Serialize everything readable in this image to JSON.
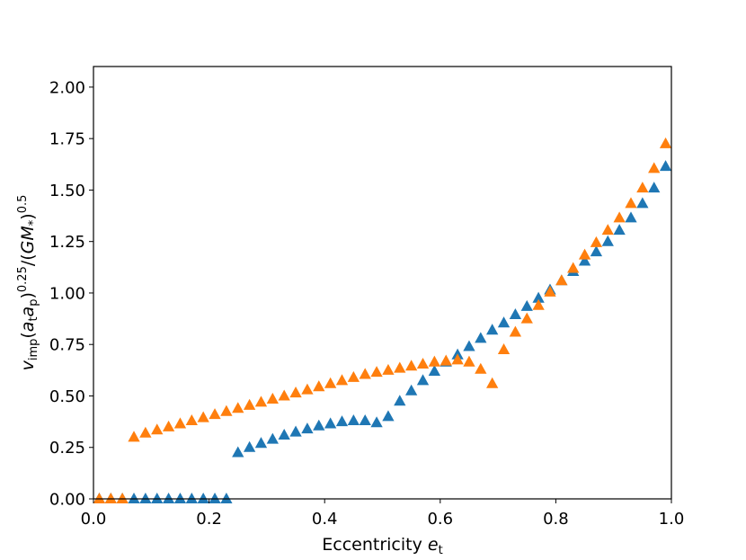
{
  "chart_data": {
    "type": "scatter",
    "marker": "triangle-up",
    "title": "",
    "xlabel": {
      "main": "Eccentricity ",
      "var": "e",
      "sub": "t"
    },
    "ylabel": {
      "v": "v",
      "v_sub": "imp",
      "open": "(",
      "a1": "a",
      "a1_sub": "t",
      "a2": "a",
      "a2_sub": "p",
      "close": ")",
      "exp1": "0.25",
      "slash": "/(",
      "gm": "GM",
      "gm_sub": "*",
      "close2": ")",
      "exp2": "0.5"
    },
    "xlim": [
      0,
      1
    ],
    "ylim": [
      0,
      2.1
    ],
    "xticks": [
      "0.0",
      "0.2",
      "0.4",
      "0.6",
      "0.8",
      "1.0"
    ],
    "xtick_values": [
      0,
      0.2,
      0.4,
      0.6,
      0.8,
      1.0
    ],
    "yticks": [
      "0.00",
      "0.25",
      "0.50",
      "0.75",
      "1.00",
      "1.25",
      "1.50",
      "1.75",
      "2.00"
    ],
    "ytick_values": [
      0,
      0.25,
      0.5,
      0.75,
      1.0,
      1.25,
      1.5,
      1.75,
      2.0
    ],
    "grid": false,
    "series": [
      {
        "color": "#1f77b4",
        "x": [
          0.01,
          0.03,
          0.05,
          0.07,
          0.09,
          0.11,
          0.13,
          0.15,
          0.17,
          0.19,
          0.21,
          0.23,
          0.25,
          0.27,
          0.29,
          0.31,
          0.33,
          0.35,
          0.37,
          0.39,
          0.41,
          0.43,
          0.45,
          0.47,
          0.49,
          0.51,
          0.53,
          0.55,
          0.57,
          0.59,
          0.61,
          0.63,
          0.65,
          0.67,
          0.69,
          0.71,
          0.73,
          0.75,
          0.77,
          0.79,
          0.81,
          0.83,
          0.85,
          0.87,
          0.89,
          0.91,
          0.93,
          0.95,
          0.97,
          0.99
        ],
        "y": [
          0,
          0,
          0,
          0,
          0,
          0,
          0,
          0,
          0,
          0,
          0,
          0,
          0.225,
          0.25,
          0.27,
          0.29,
          0.31,
          0.325,
          0.34,
          0.355,
          0.365,
          0.375,
          0.38,
          0.38,
          0.37,
          0.4,
          0.475,
          0.525,
          0.575,
          0.62,
          0.665,
          0.7,
          0.74,
          0.78,
          0.82,
          0.855,
          0.895,
          0.935,
          0.975,
          1.015,
          1.06,
          1.105,
          1.155,
          1.2,
          1.25,
          1.305,
          1.365,
          1.435,
          1.51,
          1.615
        ]
      },
      {
        "color": "#ff7f0e",
        "x": [
          0.01,
          0.03,
          0.05,
          0.07,
          0.09,
          0.11,
          0.13,
          0.15,
          0.17,
          0.19,
          0.21,
          0.23,
          0.25,
          0.27,
          0.29,
          0.31,
          0.33,
          0.35,
          0.37,
          0.39,
          0.41,
          0.43,
          0.45,
          0.47,
          0.49,
          0.51,
          0.53,
          0.55,
          0.57,
          0.59,
          0.61,
          0.63,
          0.65,
          0.67,
          0.69,
          0.71,
          0.73,
          0.75,
          0.77,
          0.79,
          0.81,
          0.83,
          0.85,
          0.87,
          0.89,
          0.91,
          0.93,
          0.95,
          0.97,
          0.99
        ],
        "y": [
          0,
          0,
          0,
          0.3,
          0.32,
          0.335,
          0.35,
          0.365,
          0.38,
          0.395,
          0.41,
          0.425,
          0.44,
          0.455,
          0.47,
          0.485,
          0.5,
          0.515,
          0.53,
          0.545,
          0.56,
          0.575,
          0.59,
          0.605,
          0.615,
          0.625,
          0.635,
          0.645,
          0.655,
          0.665,
          0.67,
          0.675,
          0.665,
          0.63,
          0.56,
          0.725,
          0.81,
          0.875,
          0.94,
          1.005,
          1.06,
          1.12,
          1.185,
          1.245,
          1.305,
          1.365,
          1.435,
          1.51,
          1.605,
          1.725
        ]
      }
    ]
  }
}
